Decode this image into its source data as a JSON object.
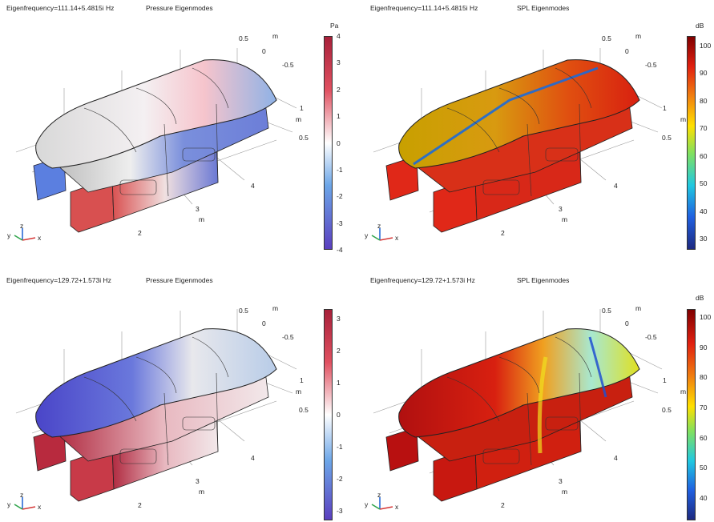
{
  "plots": [
    {
      "id": "p1",
      "header": "Eigenfrequency=111.14+5.4815i Hz",
      "title": "Pressure Eigenmodes",
      "unit": "Pa",
      "colormap": "wave",
      "ticks": [
        "4",
        "3",
        "2",
        "1",
        "0",
        "-1",
        "-2",
        "-3",
        "-4"
      ],
      "axis_labels": {
        "a": "0.5",
        "b": "0",
        "c": "-0.5",
        "d": "1",
        "e": "0.5",
        "f": "4",
        "g": "3",
        "h": "2",
        "m1": "m",
        "m2": "m",
        "m3": "m"
      }
    },
    {
      "id": "p2",
      "header": "Eigenfrequency=111.14+5.4815i Hz",
      "title": "SPL Eigenmodes",
      "unit": "dB",
      "colormap": "rainbow",
      "ticks": [
        "100",
        "90",
        "80",
        "70",
        "60",
        "50",
        "40",
        "30"
      ],
      "axis_labels": {
        "a": "0.5",
        "b": "0",
        "c": "-0.5",
        "d": "1",
        "e": "0.5",
        "f": "4",
        "g": "3",
        "h": "2",
        "m1": "m",
        "m2": "m",
        "m3": "m"
      }
    },
    {
      "id": "p3",
      "header": "Eigenfrequency=129.72+1.573i Hz",
      "title": "Pressure Eigenmodes",
      "unit": "Pa",
      "colormap": "wave",
      "ticks": [
        "3",
        "2",
        "1",
        "0",
        "-1",
        "-2",
        "-3"
      ],
      "axis_labels": {
        "a": "0.5",
        "b": "0",
        "c": "-0.5",
        "d": "1",
        "e": "0.5",
        "f": "4",
        "g": "3",
        "h": "2",
        "m1": "m",
        "m2": "m",
        "m3": "m"
      }
    },
    {
      "id": "p4",
      "header": "Eigenfrequency=129.72+1.573i Hz",
      "title": "SPL Eigenmodes",
      "unit": "dB",
      "colormap": "rainbow",
      "ticks": [
        "100",
        "90",
        "80",
        "70",
        "60",
        "50",
        "40"
      ],
      "axis_labels": {
        "a": "0.5",
        "b": "0",
        "c": "-0.5",
        "d": "1",
        "e": "0.5",
        "f": "4",
        "g": "3",
        "h": "2",
        "m1": "m",
        "m2": "m",
        "m3": "m"
      }
    }
  ],
  "triad": {
    "x": "x",
    "y": "y",
    "z": "z"
  },
  "colors": {
    "wave_top": "#a8203a",
    "wave_mid": "#ffffff",
    "wave_bottom": "#5a3fbf",
    "rainbow_top": "#800000",
    "rainbow_mid": "#ffe000",
    "rainbow_bottom": "#1e2a80",
    "red_box": "#d64040",
    "blue_box": "#5b7fe0"
  }
}
